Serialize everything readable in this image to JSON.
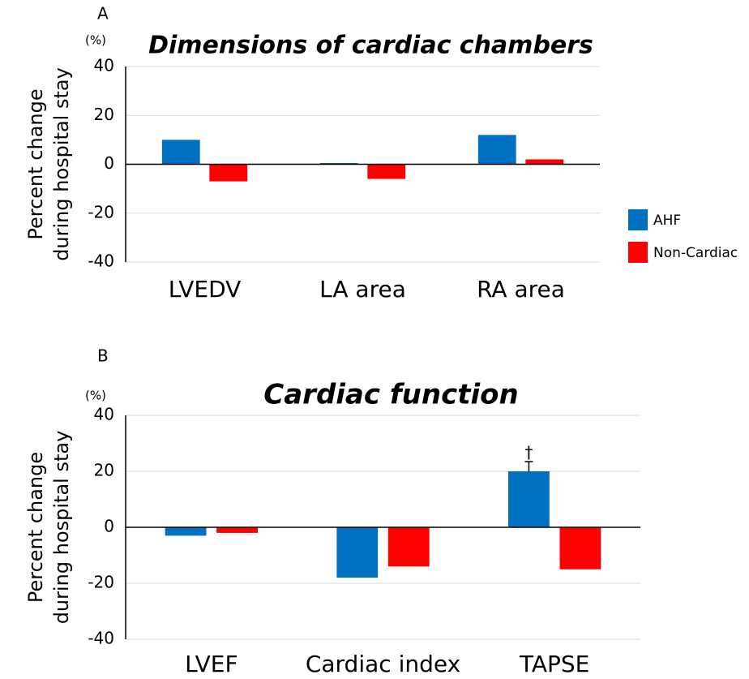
{
  "chart_data": [
    {
      "type": "bar",
      "panel": "A",
      "unit": "(%)",
      "title": "Dimensions of cardiac chambers",
      "ylabel": [
        "Percent change",
        "during hospital stay"
      ],
      "categories": [
        "LVEDV",
        "LA area",
        "RA area"
      ],
      "series": [
        {
          "name": "AHF",
          "color": "#0070c0",
          "values": [
            10,
            0.5,
            12
          ]
        },
        {
          "name": "Non-Cardiac",
          "color": "#ff0000",
          "values": [
            -7,
            -6,
            2
          ]
        }
      ],
      "ylim": [
        -40,
        40
      ],
      "yticks": [
        -40,
        -20,
        0,
        20,
        40
      ],
      "grid": true,
      "legend": "right"
    },
    {
      "type": "bar",
      "panel": "B",
      "unit": "(%)",
      "title": "Cardiac function",
      "ylabel": [
        "Percent change",
        "during hospital stay"
      ],
      "categories": [
        "LVEF",
        "Cardiac index",
        "TAPSE"
      ],
      "series": [
        {
          "name": "AHF",
          "color": "#0070c0",
          "values": [
            -3,
            -18,
            20
          ]
        },
        {
          "name": "Non-Cardiac",
          "color": "#ff0000",
          "values": [
            -2,
            -14,
            -15
          ]
        }
      ],
      "ylim": [
        -40,
        40
      ],
      "yticks": [
        -40,
        -20,
        0,
        20,
        40
      ],
      "grid": true,
      "annotations": [
        {
          "text": "†",
          "x": "TAPSE"
        }
      ]
    }
  ]
}
